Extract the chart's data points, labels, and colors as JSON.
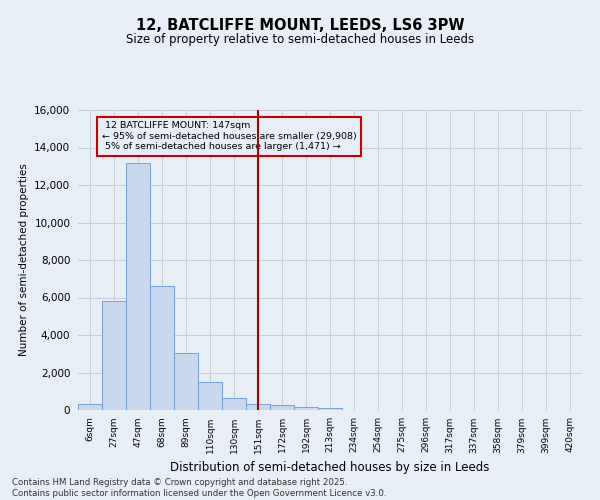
{
  "title": "12, BATCLIFFE MOUNT, LEEDS, LS6 3PW",
  "subtitle": "Size of property relative to semi-detached houses in Leeds",
  "xlabel": "Distribution of semi-detached houses by size in Leeds",
  "ylabel": "Number of semi-detached properties",
  "bin_labels": [
    "6sqm",
    "27sqm",
    "47sqm",
    "68sqm",
    "89sqm",
    "110sqm",
    "130sqm",
    "151sqm",
    "172sqm",
    "192sqm",
    "213sqm",
    "234sqm",
    "254sqm",
    "275sqm",
    "296sqm",
    "317sqm",
    "337sqm",
    "358sqm",
    "379sqm",
    "399sqm",
    "420sqm"
  ],
  "bar_values": [
    300,
    5800,
    13200,
    6600,
    3050,
    1500,
    650,
    300,
    250,
    150,
    100,
    0,
    0,
    0,
    0,
    0,
    0,
    0,
    0,
    0,
    0
  ],
  "bar_color": "#c8d8ee",
  "bar_edge_color": "#6699cc",
  "vline_label": "12 BATCLIFFE MOUNT: 147sqm",
  "smaller_pct": "95%",
  "smaller_n": "29,908",
  "larger_pct": "5%",
  "larger_n": "1,471",
  "annotation_box_color": "#cc0000",
  "vline_color": "#aa0000",
  "ylim": [
    0,
    16000
  ],
  "yticks": [
    0,
    2000,
    4000,
    6000,
    8000,
    10000,
    12000,
    14000,
    16000
  ],
  "grid_color": "#c8cdd8",
  "bg_color": "#e8eef5",
  "footer1": "Contains HM Land Registry data © Crown copyright and database right 2025.",
  "footer2": "Contains public sector information licensed under the Open Government Licence v3.0."
}
